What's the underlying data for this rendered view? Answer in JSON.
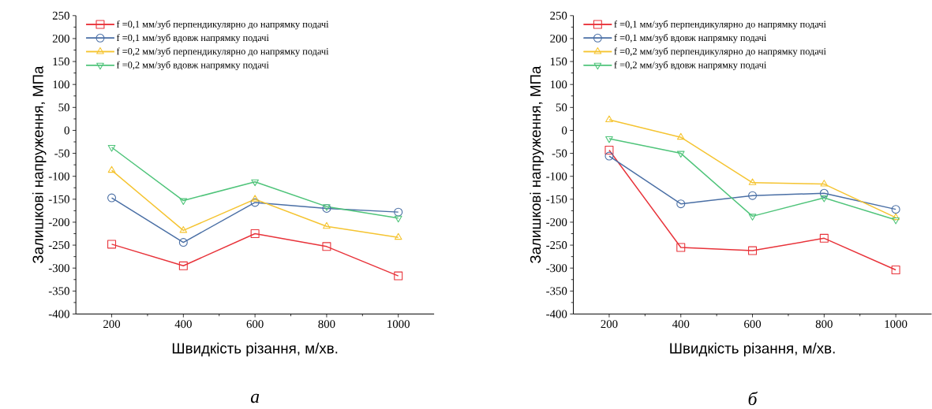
{
  "chart_data": [
    {
      "type": "line",
      "xlabel": "Швидкість різання, м/хв.",
      "ylabel": "Залишкові напруження, МПа",
      "x": [
        200,
        400,
        600,
        800,
        1000
      ],
      "xlim": [
        100,
        1100
      ],
      "xticks": [
        200,
        400,
        600,
        800,
        1000
      ],
      "ylim": [
        -400,
        250
      ],
      "yticks": [
        -400,
        -350,
        -300,
        -250,
        -200,
        -150,
        -100,
        -50,
        0,
        50,
        100,
        150,
        200,
        250
      ],
      "grid": false,
      "legend": "top",
      "line_style": "solid",
      "annotations": [
        "а"
      ],
      "series": [
        {
          "name": "f =0,1 мм/зуб перпендикулярно до напрямку подачі",
          "color": "#e8333a",
          "marker": "square",
          "values": [
            -248,
            -295,
            -225,
            -253,
            -317
          ]
        },
        {
          "name": "f =0,1 мм/зуб вдовж напрямку подачі",
          "color": "#4a6fa5",
          "marker": "circle",
          "values": [
            -147,
            -244,
            -157,
            -170,
            -178
          ]
        },
        {
          "name": "f =0,2 мм/зуб перпендикулярно до напрямку подачі",
          "color": "#f5c431",
          "marker": "triangle",
          "values": [
            -87,
            -218,
            -150,
            -209,
            -233
          ]
        },
        {
          "name": "f =0,2 мм/зуб вдовж напрямку подачі",
          "color": "#4fc47a",
          "marker": "triangle down",
          "values": [
            -37,
            -153,
            -112,
            -166,
            -191
          ]
        }
      ]
    },
    {
      "type": "line",
      "xlabel": "Швидкість різання, м/хв.",
      "ylabel": "Залишкові напруження, МПа",
      "x": [
        200,
        400,
        600,
        800,
        1000
      ],
      "xlim": [
        100,
        1100
      ],
      "xticks": [
        200,
        400,
        600,
        800,
        1000
      ],
      "ylim": [
        -400,
        250
      ],
      "yticks": [
        -400,
        -350,
        -300,
        -250,
        -200,
        -150,
        -100,
        -50,
        0,
        50,
        100,
        150,
        200,
        250
      ],
      "grid": false,
      "legend": "top",
      "line_style": "solid",
      "annotations": [
        "б"
      ],
      "series": [
        {
          "name": "f =0,1 мм/зуб перпендикулярно до напрямку подачі",
          "color": "#e8333a",
          "marker": "square",
          "values": [
            -43,
            -255,
            -262,
            -235,
            -304
          ]
        },
        {
          "name": "f =0,1 мм/зуб вдовж напрямку подачі",
          "color": "#4a6fa5",
          "marker": "circle",
          "values": [
            -56,
            -160,
            -142,
            -137,
            -172
          ]
        },
        {
          "name": "f =0,2 мм/зуб перпендикулярно до напрямку подачі",
          "color": "#f5c431",
          "marker": "triangle",
          "values": [
            23,
            -15,
            -114,
            -117,
            -190
          ]
        },
        {
          "name": "f =0,2 мм/зуб вдовж напрямку подачі",
          "color": "#4fc47a",
          "marker": "triangle down",
          "values": [
            -18,
            -50,
            -187,
            -147,
            -195
          ]
        }
      ]
    }
  ]
}
